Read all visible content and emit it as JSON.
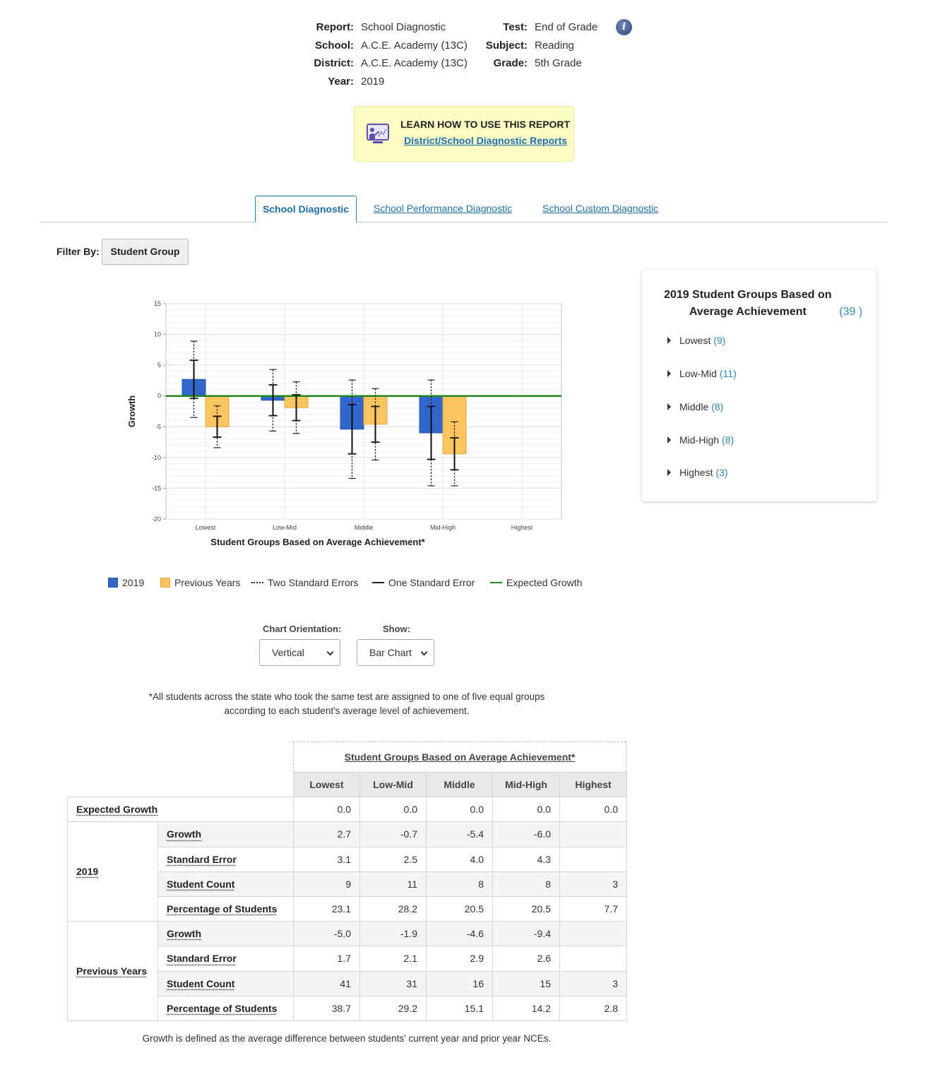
{
  "header": {
    "report_label": "Report:",
    "report_value": "School Diagnostic",
    "school_label": "School:",
    "school_value": "A.C.E. Academy (13C)",
    "district_label": "District:",
    "district_value": "A.C.E. Academy (13C)",
    "year_label": "Year:",
    "year_value": "2019",
    "test_label": "Test:",
    "test_value": "End of Grade",
    "subject_label": "Subject:",
    "subject_value": "Reading",
    "grade_label": "Grade:",
    "grade_value": "5th Grade",
    "info_glyph": "i"
  },
  "learn": {
    "title": "LEARN HOW TO USE THIS REPORT",
    "link": "District/School Diagnostic Reports",
    "icon": "presentation-icon"
  },
  "tabs": {
    "active": "School Diagnostic",
    "performance": "School Performance Diagnostic",
    "custom": "School Custom Diagnostic"
  },
  "filter": {
    "label": "Filter By:",
    "button": "Student Group"
  },
  "chart_data": {
    "type": "bar",
    "ylabel": "Growth",
    "xlabel": "Student Groups Based on Average Achievement*",
    "categories": [
      "Lowest",
      "Low-Mid",
      "Middle",
      "Mid-High",
      "Highest"
    ],
    "ylim": [
      -20,
      15
    ],
    "yticks": [
      15,
      10,
      5,
      0,
      -5,
      -10,
      -15,
      -20
    ],
    "expected_growth": 0,
    "series": [
      {
        "name": "2019",
        "color": "#3266cc",
        "values": [
          2.7,
          -0.7,
          -5.4,
          -6.0,
          null
        ],
        "std_error": [
          3.1,
          2.5,
          4.0,
          4.3,
          null
        ]
      },
      {
        "name": "Previous Years",
        "color": "#fdc55f",
        "values": [
          -5.0,
          -1.9,
          -4.6,
          -9.4,
          null
        ],
        "std_error": [
          1.7,
          2.1,
          2.9,
          2.6,
          null
        ]
      }
    ],
    "grid": true
  },
  "legend": {
    "s2019": "2019",
    "prev": "Previous Years",
    "two_se": "Two Standard Errors",
    "one_se": "One Standard Error",
    "expected": "Expected Growth",
    "expected_color": "#1a8a1a"
  },
  "controls": {
    "orientation_label": "Chart Orientation:",
    "orientation_value": "Vertical",
    "show_label": "Show:",
    "show_value": "Bar Chart"
  },
  "footnote": "*All students across the state who took the same test are assigned to one of five equal groups according to each student's average level of achievement.",
  "side_panel": {
    "title": "2019 Student Groups Based on Average Achievement",
    "title_count": "(39 )",
    "items": [
      {
        "label": "Lowest",
        "count": "(9)"
      },
      {
        "label": "Low-Mid",
        "count": "(11)"
      },
      {
        "label": "Middle",
        "count": "(8)"
      },
      {
        "label": "Mid-High",
        "count": "(8)"
      },
      {
        "label": "Highest",
        "count": "(3)"
      }
    ]
  },
  "table": {
    "top_header": "Student Groups Based on Average Achievement*",
    "columns": [
      "Lowest",
      "Low-Mid",
      "Middle",
      "Mid-High",
      "Highest"
    ],
    "expected_label": "Expected Growth",
    "expected": [
      "0.0",
      "0.0",
      "0.0",
      "0.0",
      "0.0"
    ],
    "groups": [
      {
        "name": "2019",
        "rows": [
          {
            "label": "Growth",
            "values": [
              "2.7",
              "-0.7",
              "-5.4",
              "-6.0",
              ""
            ]
          },
          {
            "label": "Standard Error",
            "values": [
              "3.1",
              "2.5",
              "4.0",
              "4.3",
              ""
            ]
          },
          {
            "label": "Student Count",
            "values": [
              "9",
              "11",
              "8",
              "8",
              "3"
            ]
          },
          {
            "label": "Percentage of Students",
            "values": [
              "23.1",
              "28.2",
              "20.5",
              "20.5",
              "7.7"
            ]
          }
        ]
      },
      {
        "name": "Previous Years",
        "rows": [
          {
            "label": "Growth",
            "values": [
              "-5.0",
              "-1.9",
              "-4.6",
              "-9.4",
              ""
            ]
          },
          {
            "label": "Standard Error",
            "values": [
              "1.7",
              "2.1",
              "2.9",
              "2.6",
              ""
            ]
          },
          {
            "label": "Student Count",
            "values": [
              "41",
              "31",
              "16",
              "15",
              "3"
            ]
          },
          {
            "label": "Percentage of Students",
            "values": [
              "38.7",
              "29.2",
              "15.1",
              "14.2",
              "2.8"
            ]
          }
        ]
      }
    ]
  },
  "growth_note": "Growth is defined as the average difference between students' current year and prior year NCEs."
}
